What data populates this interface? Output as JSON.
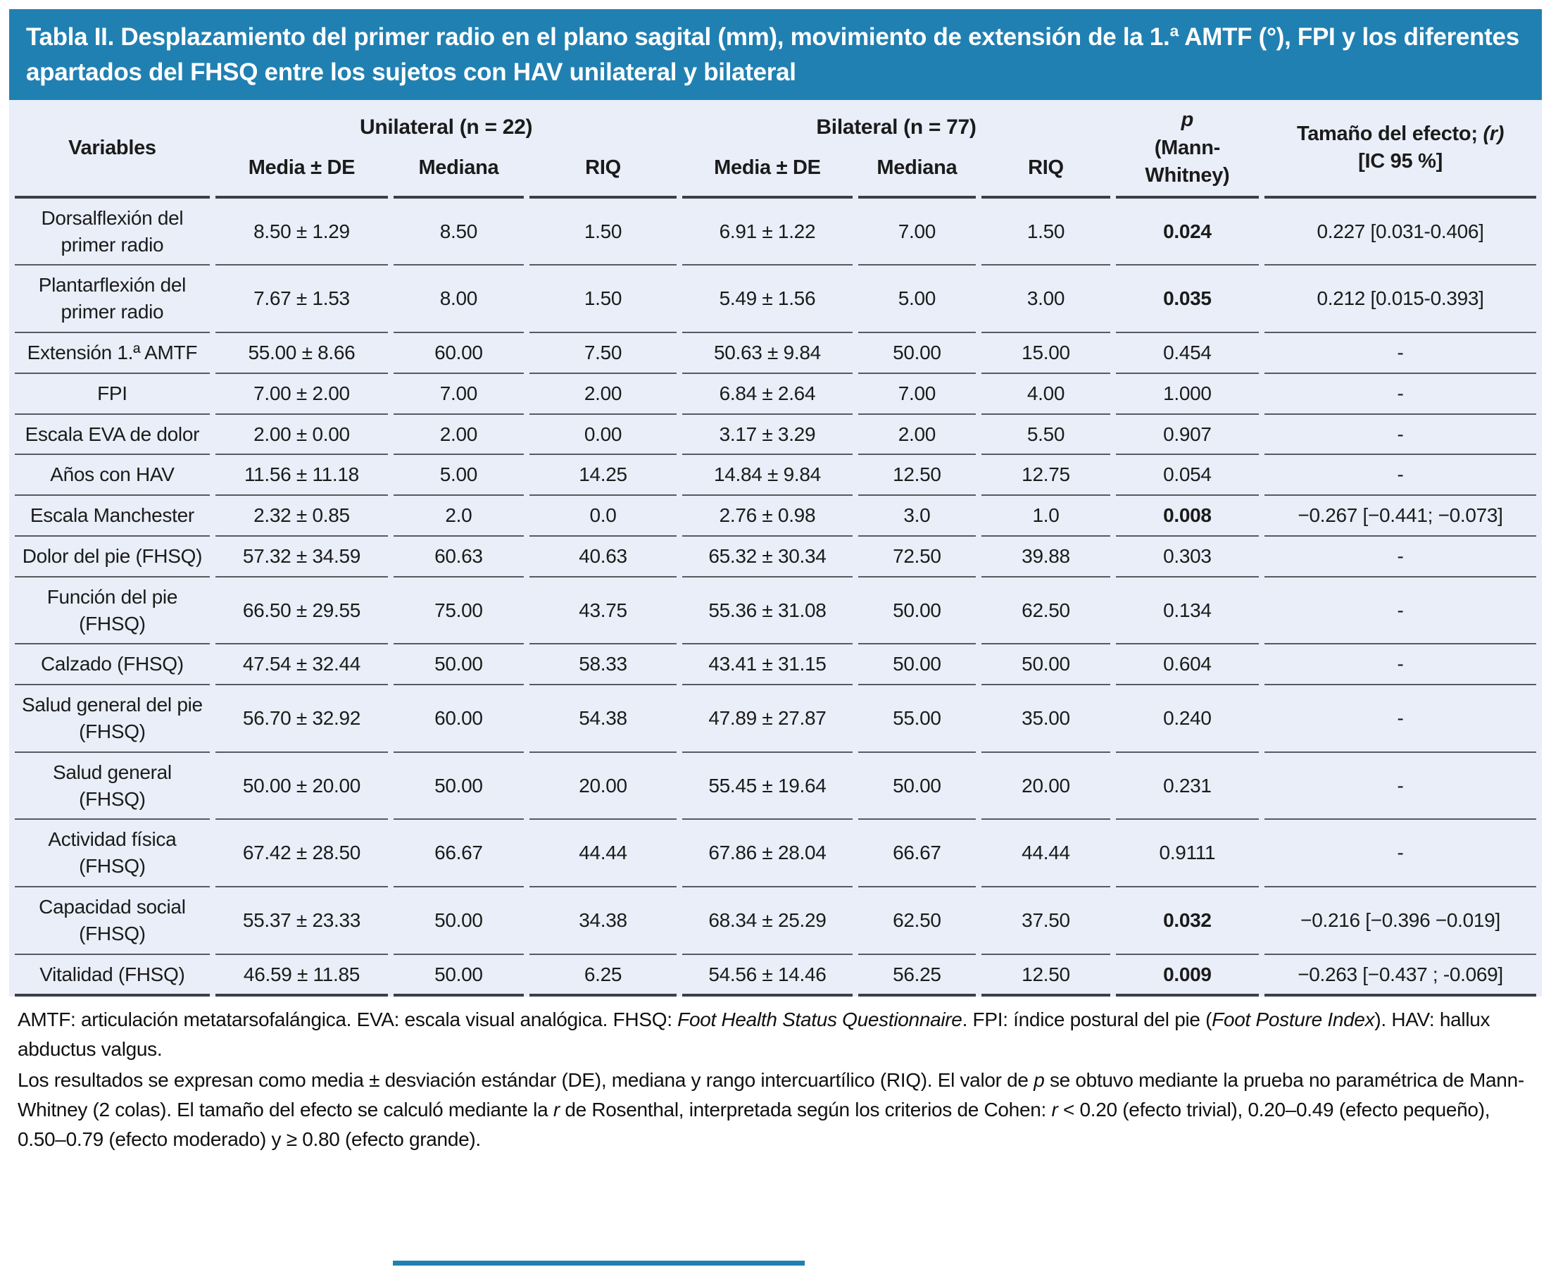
{
  "title": "Tabla II. Desplazamiento del primer radio en el plano sagital (mm), movimiento de extensión de la 1.ª AMTF (°), FPI y los diferentes apartados del FHSQ entre los sujetos con HAV unilateral y bilateral",
  "colors": {
    "header_blue": "#2080b2",
    "body_bg": "#e9eef8"
  },
  "table": {
    "col_headers": {
      "variables": "Variables",
      "group1": "Unilateral (n = 22)",
      "group2": "Bilateral (n = 77)",
      "sub": [
        "Media ± DE",
        "Mediana",
        "RIQ",
        "Media ± DE",
        "Mediana",
        "RIQ"
      ],
      "p_italic": "p",
      "p_rest": "(Mann-\nWhitney)",
      "effect_prefix": "Tamaño del efecto; ",
      "effect_r": "(r)",
      "effect_line2": "[IC 95 %]"
    },
    "rows": [
      {
        "variable": "Dorsalflexión del primer radio",
        "u_media": "8.50 ± 1.29",
        "u_mediana": "8.50",
        "u_riq": "1.50",
        "b_media": "6.91 ± 1.22",
        "b_mediana": "7.00",
        "b_riq": "1.50",
        "p": "0.024",
        "p_bold": true,
        "effect": "0.227 [0.031-0.406]"
      },
      {
        "variable": "Plantarflexión del primer radio",
        "u_media": "7.67 ± 1.53",
        "u_mediana": "8.00",
        "u_riq": "1.50",
        "b_media": "5.49 ± 1.56",
        "b_mediana": "5.00",
        "b_riq": "3.00",
        "p": "0.035",
        "p_bold": true,
        "effect": "0.212 [0.015-0.393]"
      },
      {
        "variable": "Extensión 1.ª AMTF",
        "u_media": "55.00 ± 8.66",
        "u_mediana": "60.00",
        "u_riq": "7.50",
        "b_media": "50.63 ± 9.84",
        "b_mediana": "50.00",
        "b_riq": "15.00",
        "p": "0.454",
        "p_bold": false,
        "effect": "-"
      },
      {
        "variable": "FPI",
        "u_media": "7.00 ± 2.00",
        "u_mediana": "7.00",
        "u_riq": "2.00",
        "b_media": "6.84 ± 2.64",
        "b_mediana": "7.00",
        "b_riq": "4.00",
        "p": "1.000",
        "p_bold": false,
        "effect": "-"
      },
      {
        "variable": "Escala EVA de dolor",
        "u_media": "2.00 ± 0.00",
        "u_mediana": "2.00",
        "u_riq": "0.00",
        "b_media": "3.17 ± 3.29",
        "b_mediana": "2.00",
        "b_riq": "5.50",
        "p": "0.907",
        "p_bold": false,
        "effect": "-"
      },
      {
        "variable": "Años con HAV",
        "u_media": "11.56 ± 11.18",
        "u_mediana": "5.00",
        "u_riq": "14.25",
        "b_media": "14.84 ± 9.84",
        "b_mediana": "12.50",
        "b_riq": "12.75",
        "p": "0.054",
        "p_bold": false,
        "effect": "-"
      },
      {
        "variable": "Escala Manchester",
        "u_media": "2.32 ± 0.85",
        "u_mediana": "2.0",
        "u_riq": "0.0",
        "b_media": "2.76 ± 0.98",
        "b_mediana": "3.0",
        "b_riq": "1.0",
        "p": "0.008",
        "p_bold": true,
        "effect": "−0.267 [−0.441; −0.073]"
      },
      {
        "variable": "Dolor del pie (FHSQ)",
        "u_media": "57.32 ± 34.59",
        "u_mediana": "60.63",
        "u_riq": "40.63",
        "b_media": "65.32 ± 30.34",
        "b_mediana": "72.50",
        "b_riq": "39.88",
        "p": "0.303",
        "p_bold": false,
        "effect": "-"
      },
      {
        "variable": "Función del pie (FHSQ)",
        "u_media": "66.50 ± 29.55",
        "u_mediana": "75.00",
        "u_riq": "43.75",
        "b_media": "55.36 ± 31.08",
        "b_mediana": "50.00",
        "b_riq": "62.50",
        "p": "0.134",
        "p_bold": false,
        "effect": "-"
      },
      {
        "variable": "Calzado (FHSQ)",
        "u_media": "47.54 ± 32.44",
        "u_mediana": "50.00",
        "u_riq": "58.33",
        "b_media": "43.41 ± 31.15",
        "b_mediana": "50.00",
        "b_riq": "50.00",
        "p": "0.604",
        "p_bold": false,
        "effect": "-"
      },
      {
        "variable": "Salud general del pie (FHSQ)",
        "u_media": "56.70 ± 32.92",
        "u_mediana": "60.00",
        "u_riq": "54.38",
        "b_media": "47.89 ± 27.87",
        "b_mediana": "55.00",
        "b_riq": "35.00",
        "p": "0.240",
        "p_bold": false,
        "effect": "-"
      },
      {
        "variable": "Salud general (FHSQ)",
        "u_media": "50.00 ± 20.00",
        "u_mediana": "50.00",
        "u_riq": "20.00",
        "b_media": "55.45 ± 19.64",
        "b_mediana": "50.00",
        "b_riq": "20.00",
        "p": "0.231",
        "p_bold": false,
        "effect": "-"
      },
      {
        "variable": "Actividad física (FHSQ)",
        "u_media": "67.42 ± 28.50",
        "u_mediana": "66.67",
        "u_riq": "44.44",
        "b_media": "67.86 ± 28.04",
        "b_mediana": "66.67",
        "b_riq": "44.44",
        "p": "0.9111",
        "p_bold": false,
        "effect": "-"
      },
      {
        "variable": "Capacidad social (FHSQ)",
        "u_media": "55.37 ± 23.33",
        "u_mediana": "50.00",
        "u_riq": "34.38",
        "b_media": "68.34 ± 25.29",
        "b_mediana": "62.50",
        "b_riq": "37.50",
        "p": "0.032",
        "p_bold": true,
        "effect": "−0.216 [−0.396 −0.019]"
      },
      {
        "variable": "Vitalidad (FHSQ)",
        "u_media": "46.59 ± 11.85",
        "u_mediana": "50.00",
        "u_riq": "6.25",
        "b_media": "54.56 ± 14.46",
        "b_mediana": "56.25",
        "b_riq": "12.50",
        "p": "0.009",
        "p_bold": true,
        "effect": "−0.263 [−0.437 ; -0.069]"
      }
    ]
  },
  "footnotes": {
    "n1": {
      "s1": "AMTF: articulación metatarsofalángica. EVA: escala visual analógica. FHSQ: ",
      "s2_italic": "Foot Health Status Questionnaire",
      "s3": ". FPI: índice postural del pie (",
      "s4_italic": "Foot Posture Index",
      "s5": "). HAV: hallux abductus valgus."
    },
    "n2": {
      "s1": "Los resultados se expresan como media ± desviación estándar (DE), mediana y rango intercuartílico (RIQ). El valor de ",
      "s2_italic": "p",
      "s3": " se obtuvo mediante la prueba no paramétrica de Mann-Whitney (2 colas). El tamaño del efecto se calculó mediante la ",
      "s4_italic": "r",
      "s5": " de Rosenthal, interpretada según los criterios de Cohen: ",
      "s6_italic": "r",
      "s7": " < 0.20 (efecto trivial), 0.20–0.49 (efecto pequeño), 0.50–0.79 (efecto moderado) y ≥ 0.80 (efecto grande)."
    }
  }
}
